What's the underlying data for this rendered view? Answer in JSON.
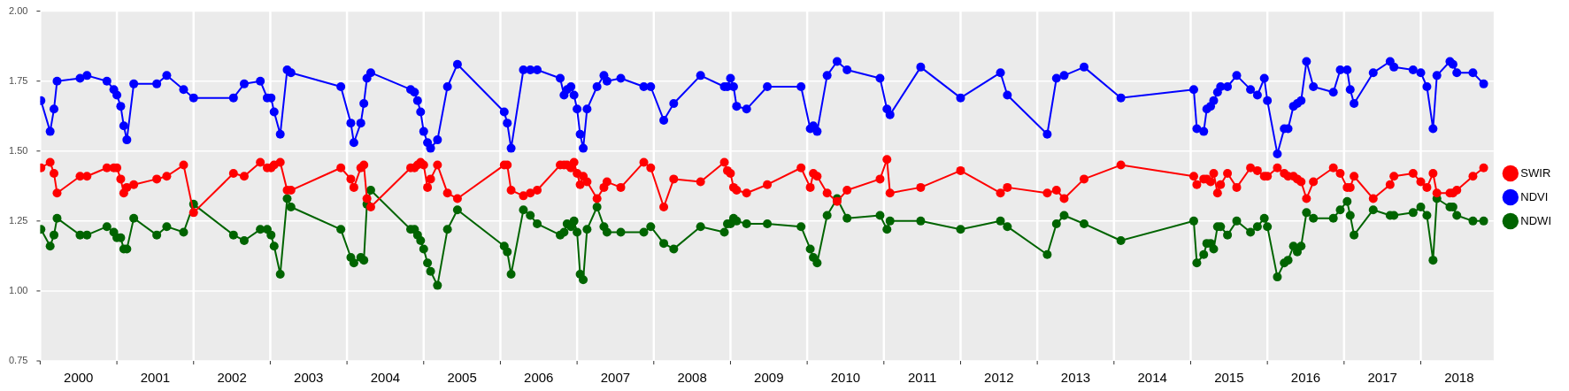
{
  "chart_data": {
    "type": "line",
    "x": [
      2000.01,
      2000.13,
      2000.18,
      2000.22,
      2000.52,
      2000.61,
      2000.87,
      2000.96,
      2001.0,
      2001.05,
      2001.09,
      2001.13,
      2001.22,
      2001.52,
      2001.65,
      2001.87,
      2002.0,
      2002.52,
      2002.66,
      2002.87,
      2002.96,
      2003.01,
      2003.05,
      2003.13,
      2003.22,
      2003.27,
      2003.92,
      2004.05,
      2004.09,
      2004.18,
      2004.22,
      2004.26,
      2004.31,
      2004.83,
      2004.88,
      2004.92,
      2004.96,
      2005.0,
      2005.05,
      2005.09,
      2005.18,
      2005.31,
      2005.44,
      2006.05,
      2006.09,
      2006.14,
      2006.3,
      2006.39,
      2006.48,
      2006.78,
      2006.83,
      2006.87,
      2006.92,
      2006.96,
      2007.0,
      2007.04,
      2007.08,
      2007.13,
      2007.26,
      2007.35,
      2007.39,
      2007.57,
      2007.87,
      2007.96,
      2008.13,
      2008.26,
      2008.61,
      2008.92,
      2008.96,
      2009.0,
      2009.04,
      2009.08,
      2009.21,
      2009.48,
      2009.92,
      2010.04,
      2010.08,
      2010.13,
      2010.26,
      2010.39,
      2010.52,
      2010.95,
      2011.04,
      2011.08,
      2011.48,
      2012.0,
      2012.52,
      2012.61,
      2013.13,
      2013.25,
      2013.35,
      2013.61,
      2014.09,
      2015.04,
      2015.08,
      2015.17,
      2015.21,
      2015.26,
      2015.3,
      2015.35,
      2015.39,
      2015.48,
      2015.6,
      2015.78,
      2015.87,
      2015.96,
      2016.0,
      2016.13,
      2016.22,
      2016.27,
      2016.34,
      2016.39,
      2016.44,
      2016.51,
      2016.6,
      2016.86,
      2016.95,
      2017.04,
      2017.08,
      2017.13,
      2017.38,
      2017.6,
      2017.65,
      2017.9,
      2018.0,
      2018.08,
      2018.16,
      2018.21,
      2018.38,
      2018.42,
      2018.47,
      2018.68,
      2018.82
    ],
    "series": [
      {
        "name": "SWIR",
        "color": "#ff0000",
        "values": [
          1.44,
          1.46,
          1.42,
          1.35,
          1.41,
          1.41,
          1.44,
          1.44,
          1.44,
          1.4,
          1.35,
          1.37,
          1.38,
          1.4,
          1.41,
          1.45,
          1.28,
          1.42,
          1.41,
          1.46,
          1.44,
          1.44,
          1.45,
          1.46,
          1.36,
          1.36,
          1.44,
          1.4,
          1.37,
          1.44,
          1.45,
          1.33,
          1.3,
          1.44,
          1.44,
          1.45,
          1.46,
          1.45,
          1.37,
          1.4,
          1.45,
          1.35,
          1.33,
          1.45,
          1.45,
          1.36,
          1.34,
          1.35,
          1.36,
          1.45,
          1.45,
          1.45,
          1.44,
          1.46,
          1.42,
          1.38,
          1.41,
          1.39,
          1.33,
          1.37,
          1.39,
          1.37,
          1.46,
          1.44,
          1.3,
          1.4,
          1.39,
          1.46,
          1.43,
          1.42,
          1.37,
          1.36,
          1.35,
          1.38,
          1.44,
          1.37,
          1.42,
          1.41,
          1.35,
          1.32,
          1.36,
          1.4,
          1.47,
          1.35,
          1.37,
          1.43,
          1.35,
          1.37,
          1.35,
          1.36,
          1.33,
          1.4,
          1.45,
          1.41,
          1.38,
          1.4,
          1.4,
          1.39,
          1.42,
          1.35,
          1.38,
          1.42,
          1.37,
          1.44,
          1.43,
          1.41,
          1.41,
          1.44,
          1.42,
          1.41,
          1.41,
          1.4,
          1.39,
          1.33,
          1.39,
          1.44,
          1.42,
          1.37,
          1.37,
          1.41,
          1.33,
          1.38,
          1.41,
          1.42,
          1.39,
          1.37,
          1.42,
          1.35,
          1.35,
          1.35,
          1.36,
          1.41,
          1.44
        ]
      },
      {
        "name": "NDVI",
        "color": "#0000ff",
        "values": [
          1.68,
          1.57,
          1.65,
          1.75,
          1.76,
          1.77,
          1.75,
          1.72,
          1.7,
          1.66,
          1.59,
          1.54,
          1.74,
          1.74,
          1.77,
          1.72,
          1.69,
          1.69,
          1.74,
          1.75,
          1.69,
          1.69,
          1.64,
          1.56,
          1.79,
          1.78,
          1.73,
          1.6,
          1.53,
          1.6,
          1.67,
          1.76,
          1.78,
          1.72,
          1.71,
          1.68,
          1.64,
          1.57,
          1.53,
          1.51,
          1.54,
          1.73,
          1.81,
          1.64,
          1.6,
          1.51,
          1.79,
          1.79,
          1.79,
          1.76,
          1.7,
          1.72,
          1.73,
          1.7,
          1.65,
          1.56,
          1.51,
          1.65,
          1.73,
          1.77,
          1.75,
          1.76,
          1.73,
          1.73,
          1.61,
          1.67,
          1.77,
          1.73,
          1.73,
          1.76,
          1.73,
          1.66,
          1.65,
          1.73,
          1.73,
          1.58,
          1.59,
          1.57,
          1.77,
          1.82,
          1.79,
          1.76,
          1.65,
          1.63,
          1.8,
          1.69,
          1.78,
          1.7,
          1.56,
          1.76,
          1.77,
          1.8,
          1.69,
          1.72,
          1.58,
          1.57,
          1.65,
          1.66,
          1.68,
          1.71,
          1.73,
          1.73,
          1.77,
          1.72,
          1.7,
          1.76,
          1.68,
          1.49,
          1.58,
          1.58,
          1.66,
          1.67,
          1.68,
          1.82,
          1.73,
          1.71,
          1.79,
          1.79,
          1.72,
          1.67,
          1.78,
          1.82,
          1.8,
          1.79,
          1.78,
          1.73,
          1.58,
          1.77,
          1.82,
          1.81,
          1.78,
          1.78,
          1.74
        ]
      },
      {
        "name": "NDWI",
        "color": "#006400",
        "values": [
          1.22,
          1.16,
          1.2,
          1.26,
          1.2,
          1.2,
          1.23,
          1.21,
          1.19,
          1.19,
          1.15,
          1.15,
          1.26,
          1.2,
          1.23,
          1.21,
          1.31,
          1.2,
          1.18,
          1.22,
          1.22,
          1.2,
          1.16,
          1.06,
          1.33,
          1.3,
          1.22,
          1.12,
          1.1,
          1.12,
          1.11,
          1.31,
          1.36,
          1.22,
          1.22,
          1.2,
          1.18,
          1.15,
          1.1,
          1.07,
          1.02,
          1.22,
          1.29,
          1.16,
          1.14,
          1.06,
          1.29,
          1.27,
          1.24,
          1.2,
          1.21,
          1.24,
          1.23,
          1.25,
          1.21,
          1.06,
          1.04,
          1.22,
          1.3,
          1.23,
          1.21,
          1.21,
          1.21,
          1.23,
          1.17,
          1.15,
          1.23,
          1.21,
          1.24,
          1.24,
          1.26,
          1.25,
          1.24,
          1.24,
          1.23,
          1.15,
          1.12,
          1.1,
          1.27,
          1.33,
          1.26,
          1.27,
          1.22,
          1.25,
          1.25,
          1.22,
          1.25,
          1.23,
          1.13,
          1.24,
          1.27,
          1.24,
          1.18,
          1.25,
          1.1,
          1.13,
          1.17,
          1.17,
          1.15,
          1.23,
          1.23,
          1.2,
          1.25,
          1.21,
          1.23,
          1.26,
          1.23,
          1.05,
          1.1,
          1.11,
          1.16,
          1.14,
          1.16,
          1.28,
          1.26,
          1.26,
          1.29,
          1.32,
          1.27,
          1.2,
          1.29,
          1.27,
          1.27,
          1.28,
          1.3,
          1.27,
          1.11,
          1.33,
          1.3,
          1.3,
          1.27,
          1.25,
          1.25
        ]
      }
    ],
    "xlim": [
      2000,
      2018.95
    ],
    "xticks": [
      {
        "value": 2000,
        "label": null
      },
      {
        "value": 2000.5,
        "label": "2000"
      },
      {
        "value": 2001,
        "label": null
      },
      {
        "value": 2001.5,
        "label": "2001"
      },
      {
        "value": 2002,
        "label": null
      },
      {
        "value": 2002.5,
        "label": "2002"
      },
      {
        "value": 2003,
        "label": null
      },
      {
        "value": 2003.5,
        "label": "2003"
      },
      {
        "value": 2004,
        "label": null
      },
      {
        "value": 2004.5,
        "label": "2004"
      },
      {
        "value": 2005,
        "label": null
      },
      {
        "value": 2005.5,
        "label": "2005"
      },
      {
        "value": 2006,
        "label": null
      },
      {
        "value": 2006.5,
        "label": "2006"
      },
      {
        "value": 2007,
        "label": null
      },
      {
        "value": 2007.5,
        "label": "2007"
      },
      {
        "value": 2008,
        "label": null
      },
      {
        "value": 2008.5,
        "label": "2008"
      },
      {
        "value": 2009,
        "label": null
      },
      {
        "value": 2009.5,
        "label": "2009"
      },
      {
        "value": 2010,
        "label": null
      },
      {
        "value": 2010.5,
        "label": "2010"
      },
      {
        "value": 2011,
        "label": null
      },
      {
        "value": 2011.5,
        "label": "2011"
      },
      {
        "value": 2012,
        "label": null
      },
      {
        "value": 2012.5,
        "label": "2012"
      },
      {
        "value": 2013,
        "label": null
      },
      {
        "value": 2013.5,
        "label": "2013"
      },
      {
        "value": 2014,
        "label": null
      },
      {
        "value": 2014.5,
        "label": "2014"
      },
      {
        "value": 2015,
        "label": null
      },
      {
        "value": 2015.5,
        "label": "2015"
      },
      {
        "value": 2016,
        "label": null
      },
      {
        "value": 2016.5,
        "label": "2016"
      },
      {
        "value": 2017,
        "label": null
      },
      {
        "value": 2017.5,
        "label": "2017"
      },
      {
        "value": 2018,
        "label": null
      },
      {
        "value": 2018.5,
        "label": "2018"
      }
    ],
    "ylim": [
      0.75,
      2.0
    ],
    "yticks": [
      {
        "value": 0.75,
        "label": "0.75"
      },
      {
        "value": 1.0,
        "label": "1.00"
      },
      {
        "value": 1.25,
        "label": "1.25"
      },
      {
        "value": 1.5,
        "label": "1.50"
      },
      {
        "value": 1.75,
        "label": "1.75"
      },
      {
        "value": 2.0,
        "label": "2.00"
      }
    ],
    "grid": true,
    "legend": "right",
    "marker": "circle",
    "line_style": "solid"
  }
}
